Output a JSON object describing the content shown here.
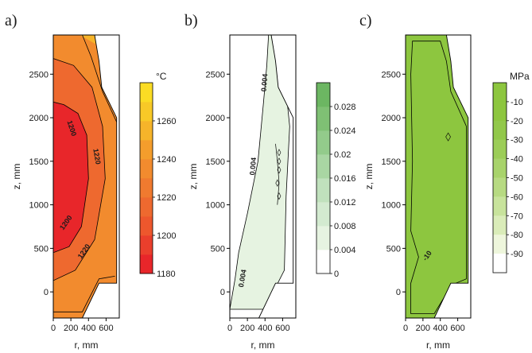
{
  "chart_data": [
    {
      "type": "heatmap",
      "panel_label": "a)",
      "xlabel": "r, mm",
      "ylabel": "z, mm",
      "xticks": [
        0,
        200,
        400,
        600
      ],
      "yticks": [
        0,
        500,
        1000,
        1500,
        2000,
        2500
      ],
      "xlim": [
        0,
        750
      ],
      "ylim": [
        -300,
        2950
      ],
      "colorbar": {
        "unit": "°C",
        "ticks": [
          1180,
          1200,
          1220,
          1240,
          1260
        ],
        "levels": [
          1180,
          1190,
          1200,
          1210,
          1220,
          1230,
          1240,
          1250,
          1260
        ],
        "colors": [
          "#e8262a",
          "#ea3f2c",
          "#ed572d",
          "#ee692f",
          "#f07a2f",
          "#f28b2e",
          "#f49d2c",
          "#f6b42a",
          "#f8c927",
          "#fbdc24"
        ]
      },
      "contour_labels": [
        "1200",
        "1220",
        "1220",
        "1200",
        "1220"
      ],
      "regions": [
        "#f6b42a",
        "#f28b2e",
        "#ee692f",
        "#e8262a"
      ]
    },
    {
      "type": "heatmap",
      "panel_label": "b)",
      "xlabel": "r, mm",
      "ylabel": "z, mm",
      "xticks": [
        0,
        200,
        400,
        600
      ],
      "yticks": [
        0,
        500,
        1000,
        1500,
        2000,
        2500
      ],
      "xlim": [
        0,
        750
      ],
      "ylim": [
        -300,
        2950
      ],
      "colorbar": {
        "unit": "",
        "ticks": [
          "0",
          "0.004",
          "0.008",
          "0.012",
          "0.016",
          "0.02",
          "0.024",
          "0.028"
        ],
        "colors": [
          "#ffffff",
          "#e6f3e1",
          "#d3ead0",
          "#c0e1bd",
          "#a9d6a3",
          "#93cb8b",
          "#7fc074",
          "#6cb662"
        ]
      },
      "contour_labels": [
        "0.004",
        "0.004",
        "0.004"
      ],
      "regions": [
        "#e6f3e1",
        "#d3ead0"
      ]
    },
    {
      "type": "heatmap",
      "panel_label": "c)",
      "xlabel": "r, mm",
      "ylabel": "z, mm",
      "xticks": [
        0,
        200,
        400,
        600
      ],
      "yticks": [
        0,
        500,
        1000,
        1500,
        2000,
        2500
      ],
      "xlim": [
        0,
        750
      ],
      "ylim": [
        -300,
        2950
      ],
      "colorbar": {
        "unit": "MPa",
        "ticks": [
          -10,
          -20,
          -30,
          -40,
          -50,
          -60,
          -70,
          -80,
          -90
        ],
        "colors": [
          "#8dc63f",
          "#8dc63f",
          "#92c84a",
          "#9ccd58",
          "#a8d36b",
          "#b7da82",
          "#c8e39c",
          "#daecb9",
          "#eef6dc",
          "#ffffff"
        ]
      },
      "contour_labels": [
        "-10"
      ],
      "regions": [
        "#8dc63f"
      ]
    }
  ]
}
